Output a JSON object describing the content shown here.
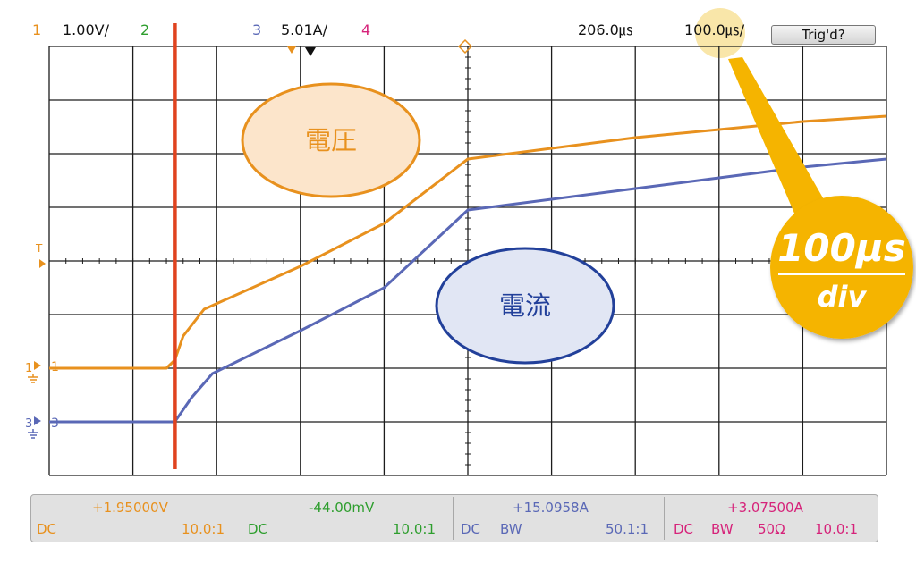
{
  "header": {
    "ch1_num": "1",
    "ch1_scale": "1.00V/",
    "ch2_num": "2",
    "ch3_num": "3",
    "ch3_scale": "5.01A/",
    "ch4_num": "4",
    "time_offset": "206.0㎲",
    "time_scale": "100.0㎲/",
    "trigger_status": "Trig'd?"
  },
  "callouts": {
    "voltage": "電圧",
    "current": "電流",
    "timebase_value": "100μs",
    "timebase_unit": "div"
  },
  "markers": {
    "trigger_level": "T",
    "ch1_ground": "1",
    "ch1_label": "1",
    "ch3_ground": "3",
    "ch3_label": "3"
  },
  "status_bar": {
    "ch1": {
      "value": "+1.95000V",
      "coupling": "DC",
      "probe": "10.0:1"
    },
    "ch2": {
      "value": "-44.00mV",
      "coupling": "DC",
      "probe": "10.0:1"
    },
    "ch3": {
      "value": "+15.0958A",
      "coupling": "DC",
      "bw": "BW",
      "probe": "50.1:1"
    },
    "ch4": {
      "value": "+3.07500A",
      "coupling": "DC",
      "bw": "BW",
      "impedance": "50Ω",
      "probe": "10.0:1"
    }
  },
  "colors": {
    "ch1": "#E8911E",
    "ch2": "#2E9E2E",
    "ch3": "#5A68B6",
    "ch4": "#D6237A",
    "cursor": "#E0431F",
    "callout_gold": "#F5B400"
  },
  "chart_data": {
    "type": "line",
    "x_unit": "div",
    "xlim": [
      0,
      10
    ],
    "ylim": [
      -4,
      4
    ],
    "grid": true,
    "cursor_x": 1.5,
    "series": [
      {
        "name": "1",
        "x": [
          0,
          1.4,
          1.5,
          1.6,
          1.85,
          3.0,
          4.0,
          5.0,
          7.0,
          9.0,
          10.0
        ],
        "y": [
          -2.0,
          -2.0,
          -1.85,
          -1.4,
          -0.9,
          -0.1,
          0.7,
          1.9,
          2.3,
          2.6,
          2.7
        ]
      },
      {
        "name": "3",
        "x": [
          0,
          1.5,
          1.7,
          1.95,
          3.0,
          4.0,
          5.0,
          7.0,
          9.0,
          10.0
        ],
        "y": [
          -3.0,
          -3.0,
          -2.55,
          -2.1,
          -1.3,
          -0.5,
          0.95,
          1.35,
          1.75,
          1.9
        ]
      }
    ]
  }
}
